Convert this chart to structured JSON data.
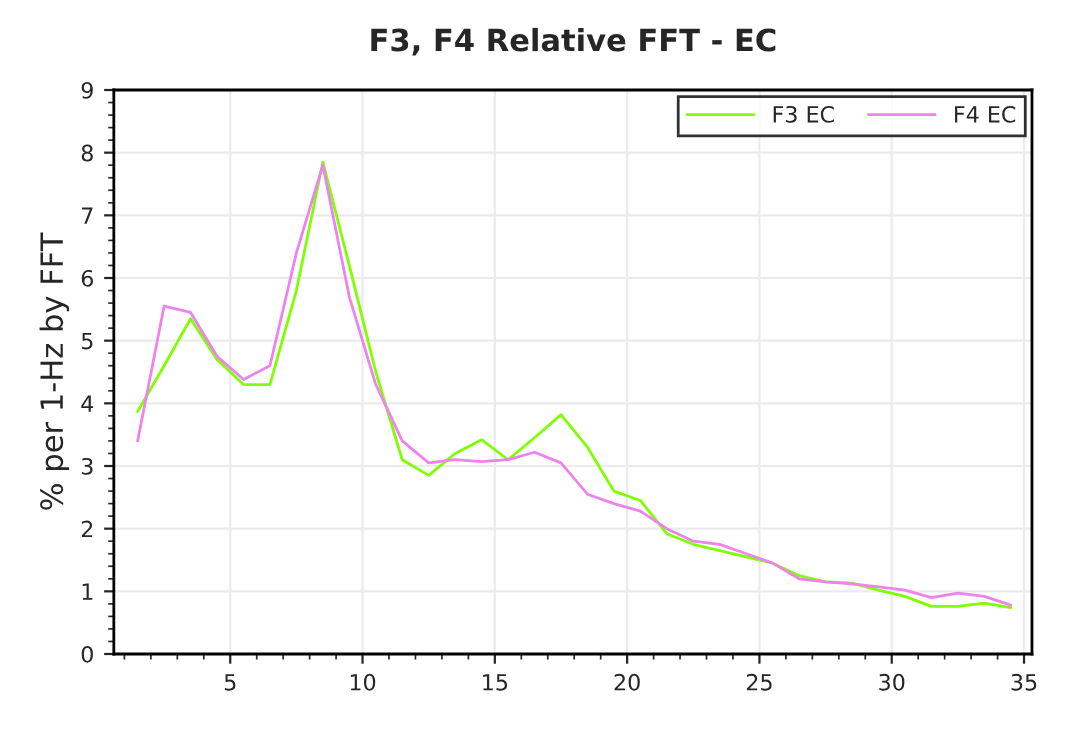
{
  "chart_data": {
    "type": "line",
    "title": "F3, F4 Relative FFT - EC",
    "ylabel": "% per 1-Hz by FFT",
    "x": [
      1.5,
      2.5,
      3.5,
      4.5,
      5.5,
      6.5,
      7.5,
      8.5,
      9.5,
      10.5,
      11.5,
      12.5,
      13.5,
      14.5,
      15.5,
      16.5,
      17.5,
      18.5,
      19.5,
      20.5,
      21.5,
      22.5,
      23.5,
      24.5,
      25.5,
      26.5,
      27.5,
      28.5,
      29.5,
      30.5,
      31.5,
      32.5,
      33.5,
      34.5
    ],
    "series": [
      {
        "name": "F3 EC",
        "color": "#7fff00",
        "values": [
          3.87,
          4.6,
          5.35,
          4.7,
          4.3,
          4.3,
          5.8,
          7.85,
          6.2,
          4.5,
          3.1,
          2.85,
          3.2,
          3.42,
          3.1,
          3.45,
          3.82,
          3.3,
          2.6,
          2.45,
          1.92,
          1.75,
          1.65,
          1.55,
          1.45,
          1.25,
          1.15,
          1.13,
          1.02,
          0.92,
          0.76,
          0.76,
          0.81,
          0.74
        ]
      },
      {
        "name": "F4 EC",
        "color": "#ee82ee",
        "values": [
          3.4,
          5.55,
          5.45,
          4.75,
          4.38,
          4.6,
          6.4,
          7.8,
          5.7,
          4.3,
          3.4,
          3.05,
          3.1,
          3.07,
          3.1,
          3.22,
          3.05,
          2.55,
          2.4,
          2.28,
          2.0,
          1.8,
          1.75,
          1.6,
          1.45,
          1.2,
          1.15,
          1.12,
          1.07,
          1.02,
          0.9,
          0.97,
          0.92,
          0.78
        ]
      }
    ],
    "xlim": [
      0.6,
      35.3
    ],
    "xticks": [
      5,
      10,
      15,
      20,
      25,
      30,
      35
    ],
    "ylim": [
      0,
      9
    ],
    "yticks": [
      0,
      1,
      2,
      3,
      4,
      5,
      6,
      7,
      8,
      9
    ],
    "grid": true,
    "legend": "top right",
    "marker": "none",
    "line_style": "solid"
  }
}
